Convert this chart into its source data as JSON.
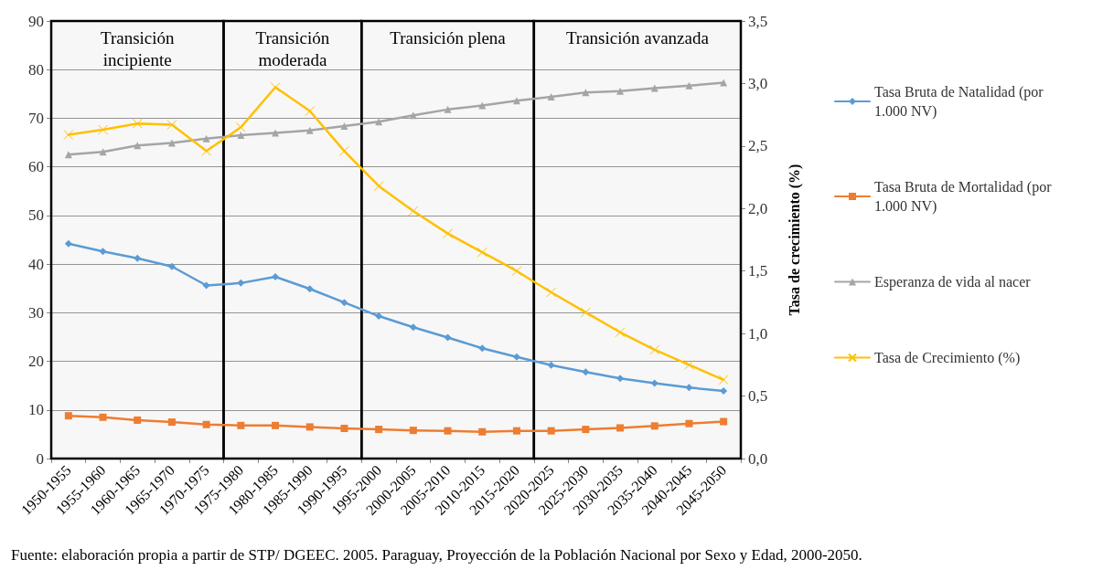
{
  "chart_data": {
    "type": "line",
    "y2label": "Tasa de crecimiento (%)",
    "annotations": [
      "Fuente: elaboración propia a partir de STP/ DGEEC. 2005. Paraguay, Proyección de la Población Nacional por Sexo y Edad, 2000-2050."
    ],
    "categories": [
      "1950-1955",
      "1955-1960",
      "1960-1965",
      "1965-1970",
      "1970-1975",
      "1975-1980",
      "1980-1985",
      "1985-1990",
      "1990-1995",
      "1995-2000",
      "2000-2005",
      "2005-2010",
      "2010-2015",
      "2015-2020",
      "2020-2025",
      "2025-2030",
      "2030-2035",
      "2035-2040",
      "2040-2045",
      "2045-2050"
    ],
    "series": [
      {
        "name": "Tasa Bruta de Natalidad (por 1.000 NV)",
        "color": "#5b9bd5",
        "marker": "diamond",
        "values": [
          44.2,
          42.6,
          41.2,
          39.5,
          35.6,
          36.1,
          37.4,
          34.9,
          32.1,
          29.3,
          27.0,
          24.9,
          22.7,
          20.9,
          19.2,
          17.8,
          16.5,
          15.5,
          14.6,
          13.9
        ]
      },
      {
        "name": "Tasa Bruta de Mortalidad (por 1.000 NV)",
        "color": "#ed7d31",
        "marker": "square",
        "values": [
          8.8,
          8.5,
          7.9,
          7.5,
          7.0,
          6.8,
          6.8,
          6.5,
          6.2,
          6.0,
          5.8,
          5.7,
          5.5,
          5.7,
          5.7,
          6.0,
          6.3,
          6.7,
          7.2,
          7.6
        ]
      },
      {
        "name": "Esperanza de vida al nacer",
        "color": "#a5a5a5",
        "marker": "triangle",
        "values": [
          62.5,
          63.1,
          64.4,
          64.9,
          65.8,
          66.5,
          67.0,
          67.5,
          68.4,
          69.3,
          70.6,
          71.8,
          72.6,
          73.6,
          74.4,
          75.3,
          75.6,
          76.2,
          76.7,
          77.3
        ]
      },
      {
        "name": "Tasa de Crecimiento (%)",
        "color": "#ffc000",
        "marker": "cross",
        "axis": "y2",
        "values": [
          2.59,
          2.63,
          2.68,
          2.67,
          2.46,
          2.65,
          2.97,
          2.78,
          2.46,
          2.18,
          1.98,
          1.8,
          1.65,
          1.5,
          1.33,
          1.17,
          1.01,
          0.87,
          0.75,
          0.63
        ]
      }
    ],
    "bands": [
      {
        "axis": "x",
        "from": "1950-1955",
        "to": "1970-1975",
        "label": "Transición\nincipiente",
        "color": "#000000"
      },
      {
        "axis": "x",
        "from": "1975-1980",
        "to": "1990-1995",
        "label": "Transición\nmoderada",
        "color": "#000000"
      },
      {
        "axis": "x",
        "from": "1995-2000",
        "to": "2015-2020",
        "label": "Transición plena",
        "color": "#000000"
      },
      {
        "axis": "x",
        "from": "2020-2025",
        "to": "2045-2050",
        "label": "Transición avanzada",
        "color": "#000000"
      }
    ],
    "ylim": [
      0,
      90
    ],
    "yticks": [
      0,
      10,
      20,
      30,
      40,
      50,
      60,
      70,
      80,
      90
    ],
    "y2lim": [
      0,
      3.5
    ],
    "y2ticks": [
      {
        "value": 0,
        "label": "0,0"
      },
      {
        "value": 0.5,
        "label": "0,5"
      },
      {
        "value": 1,
        "label": "1,0"
      },
      {
        "value": 1.5,
        "label": "1,5"
      },
      {
        "value": 2,
        "label": "2,0"
      },
      {
        "value": 2.5,
        "label": "2,5"
      },
      {
        "value": 3,
        "label": "3,0"
      },
      {
        "value": 3.5,
        "label": "3,5"
      }
    ],
    "grid": "y",
    "legend": "right",
    "line_style": "solid"
  }
}
